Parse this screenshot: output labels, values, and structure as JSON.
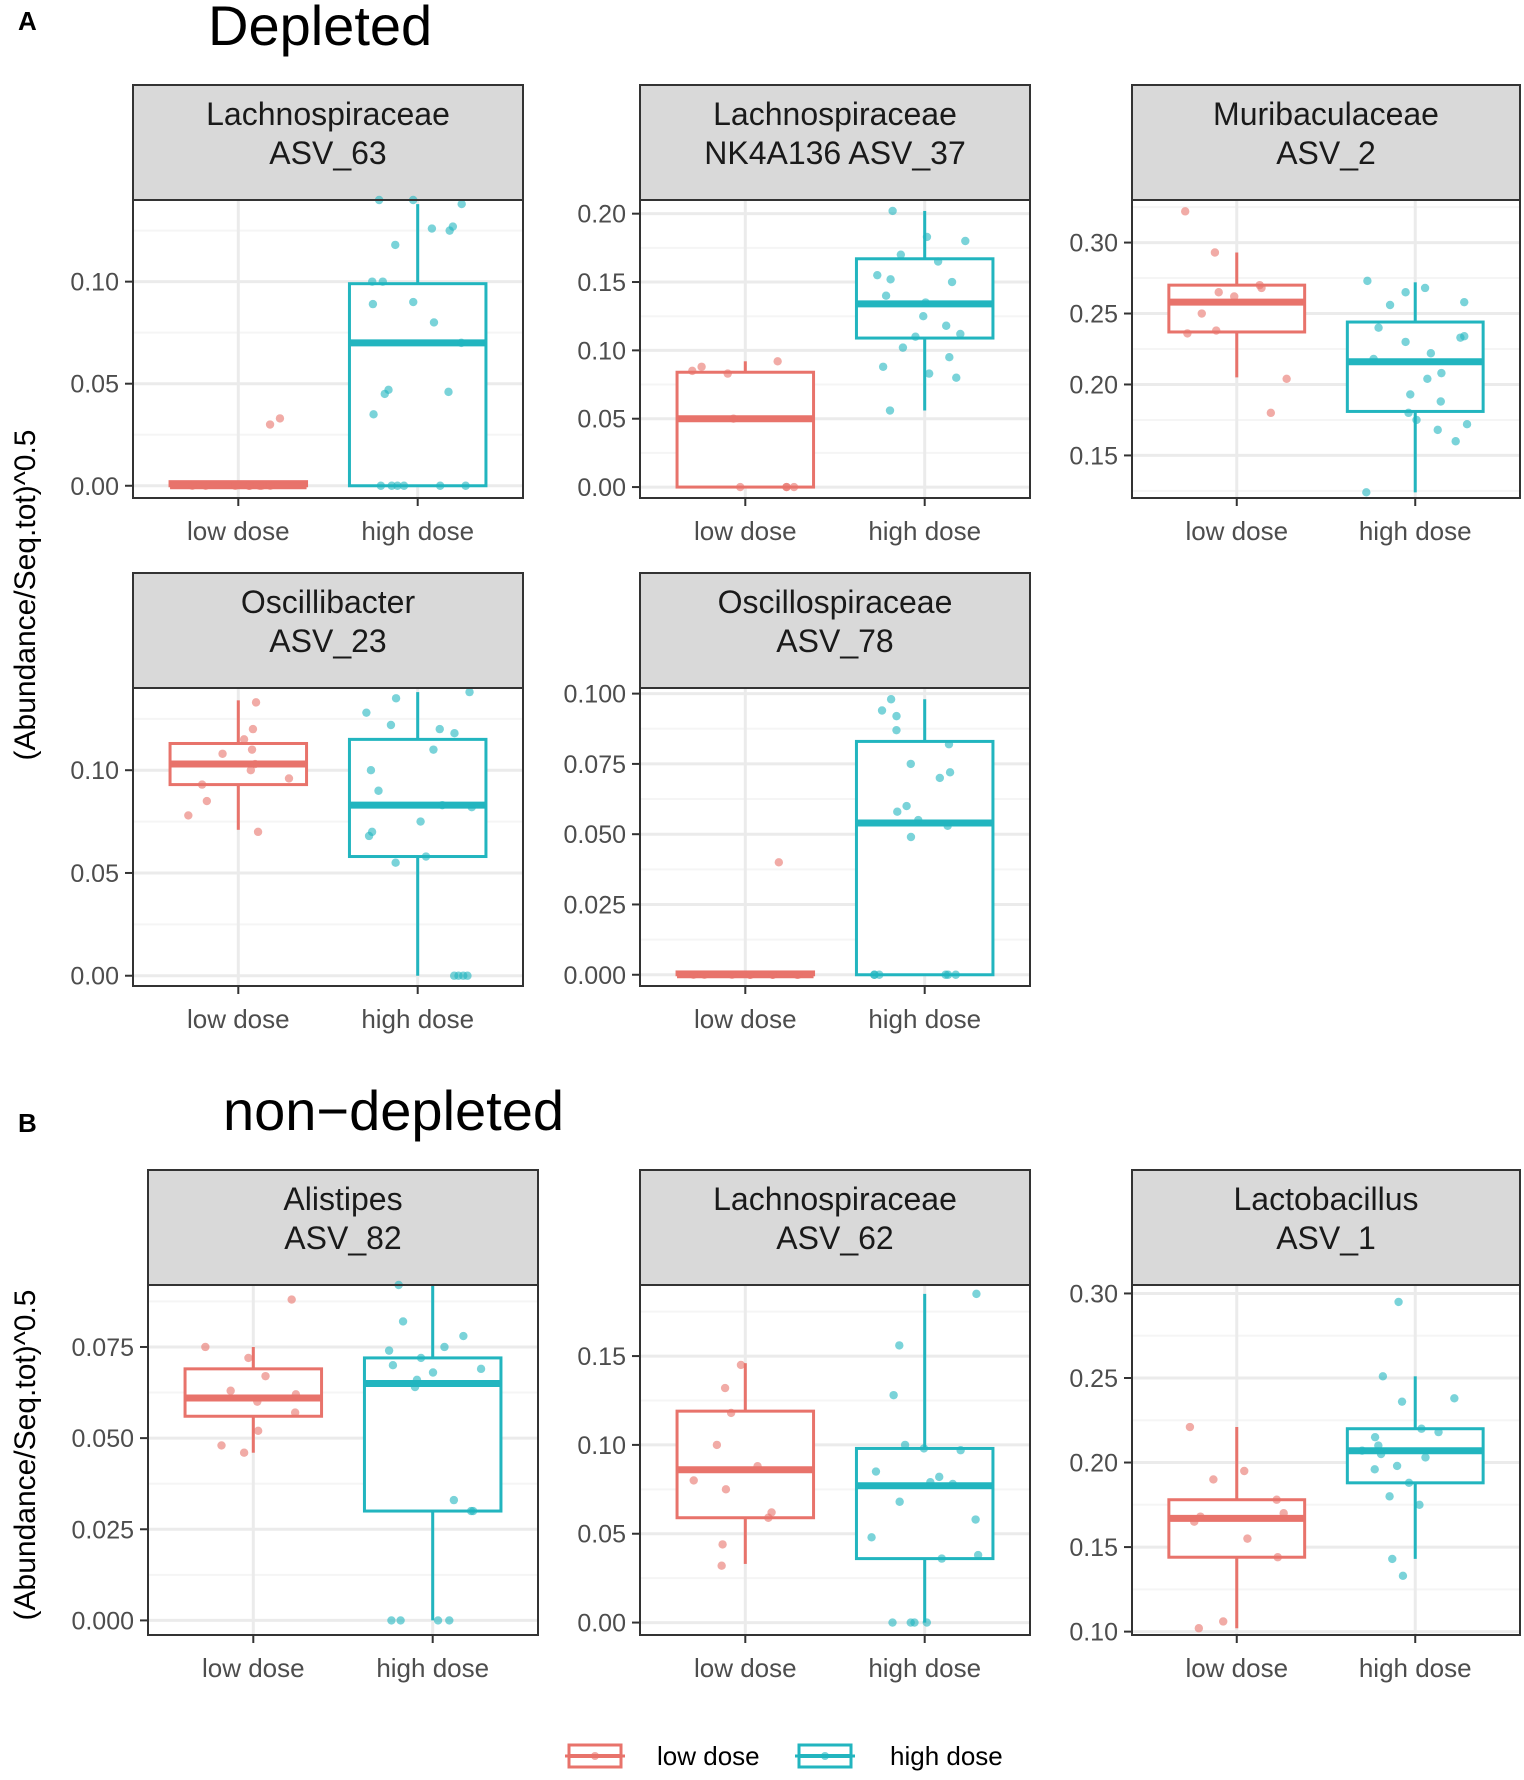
{
  "colors": {
    "low_dose": "#E8736B",
    "high_dose": "#22B5BF",
    "strip_bg": "#D9D9D9",
    "grid_major": "#EBEBEB",
    "grid_minor": "#F5F5F5"
  },
  "sections": [
    {
      "letter": "A",
      "title": "Depleted",
      "ylabel": "(Abundance/Seq.tot)^0.5"
    },
    {
      "letter": "B",
      "title": "non−depleted",
      "ylabel": "(Abundance/Seq.tot)^0.5"
    }
  ],
  "legend": {
    "items": [
      "low dose",
      "high dose"
    ]
  },
  "chart_data": [
    {
      "type": "boxplot",
      "title_lines": [
        "Lachnospiraceae",
        "ASV_63"
      ],
      "categories": [
        "low dose",
        "high dose"
      ],
      "ylim": [
        -0.006,
        0.14
      ],
      "yticks": [
        {
          "v": 0,
          "label": "0.00"
        },
        {
          "v": 0.05,
          "label": "0.05"
        },
        {
          "v": 0.1,
          "label": "0.10"
        }
      ],
      "groups": [
        {
          "name": "low dose",
          "q1": 0,
          "median": 0,
          "q3": 0.002,
          "wlow": 0,
          "whigh": 0.002,
          "points": [
            0,
            0,
            0,
            0,
            0,
            0,
            0,
            0,
            0.033,
            0.03
          ]
        },
        {
          "name": "high dose",
          "q1": 0,
          "median": 0.07,
          "q3": 0.099,
          "wlow": 0,
          "whigh": 0.138,
          "points": [
            0,
            0,
            0,
            0,
            0,
            0,
            0.035,
            0.045,
            0.046,
            0.047,
            0.07,
            0.08,
            0.089,
            0.09,
            0.1,
            0.1,
            0.118,
            0.125,
            0.126,
            0.127,
            0.138,
            0.14,
            0.14
          ]
        }
      ]
    },
    {
      "type": "boxplot",
      "title_lines": [
        "Lachnospiraceae",
        "NK4A136 ASV_37"
      ],
      "categories": [
        "low dose",
        "high dose"
      ],
      "ylim": [
        -0.008,
        0.21
      ],
      "yticks": [
        {
          "v": 0,
          "label": "0.00"
        },
        {
          "v": 0.05,
          "label": "0.05"
        },
        {
          "v": 0.1,
          "label": "0.10"
        },
        {
          "v": 0.15,
          "label": "0.15"
        },
        {
          "v": 0.2,
          "label": "0.20"
        }
      ],
      "groups": [
        {
          "name": "low dose",
          "q1": 0,
          "median": 0.05,
          "q3": 0.084,
          "wlow": 0,
          "whigh": 0.092,
          "points": [
            0,
            0,
            0,
            0,
            0.05,
            0.083,
            0.085,
            0.088,
            0.092
          ]
        },
        {
          "name": "high dose",
          "q1": 0.109,
          "median": 0.134,
          "q3": 0.167,
          "wlow": 0.056,
          "whigh": 0.202,
          "points": [
            0.056,
            0.08,
            0.083,
            0.088,
            0.095,
            0.102,
            0.11,
            0.112,
            0.118,
            0.125,
            0.135,
            0.14,
            0.15,
            0.152,
            0.155,
            0.165,
            0.17,
            0.18,
            0.183,
            0.202
          ]
        }
      ]
    },
    {
      "type": "boxplot",
      "title_lines": [
        "Muribaculaceae",
        "ASV_2"
      ],
      "categories": [
        "low dose",
        "high dose"
      ],
      "ylim": [
        0.12,
        0.33
      ],
      "yticks": [
        {
          "v": 0.15,
          "label": "0.15"
        },
        {
          "v": 0.2,
          "label": "0.20"
        },
        {
          "v": 0.25,
          "label": "0.25"
        },
        {
          "v": 0.3,
          "label": "0.30"
        }
      ],
      "groups": [
        {
          "name": "low dose",
          "q1": 0.237,
          "median": 0.258,
          "q3": 0.27,
          "wlow": 0.205,
          "whigh": 0.293,
          "points": [
            0.18,
            0.204,
            0.236,
            0.238,
            0.25,
            0.262,
            0.265,
            0.268,
            0.27,
            0.293,
            0.322
          ]
        },
        {
          "name": "high dose",
          "q1": 0.181,
          "median": 0.216,
          "q3": 0.244,
          "wlow": 0.124,
          "whigh": 0.272,
          "points": [
            0.124,
            0.16,
            0.168,
            0.172,
            0.175,
            0.18,
            0.188,
            0.193,
            0.204,
            0.208,
            0.218,
            0.222,
            0.23,
            0.233,
            0.234,
            0.24,
            0.256,
            0.258,
            0.265,
            0.268,
            0.273
          ]
        }
      ]
    },
    {
      "type": "boxplot",
      "title_lines": [
        "Oscillibacter",
        "ASV_23"
      ],
      "categories": [
        "low dose",
        "high dose"
      ],
      "ylim": [
        -0.005,
        0.14
      ],
      "yticks": [
        {
          "v": 0,
          "label": "0.00"
        },
        {
          "v": 0.05,
          "label": "0.05"
        },
        {
          "v": 0.1,
          "label": "0.10"
        }
      ],
      "groups": [
        {
          "name": "low dose",
          "q1": 0.093,
          "median": 0.103,
          "q3": 0.113,
          "wlow": 0.071,
          "whigh": 0.134,
          "points": [
            0.07,
            0.078,
            0.085,
            0.093,
            0.096,
            0.1,
            0.103,
            0.108,
            0.11,
            0.115,
            0.12,
            0.133
          ]
        },
        {
          "name": "high dose",
          "q1": 0.058,
          "median": 0.083,
          "q3": 0.115,
          "wlow": 0,
          "whigh": 0.138,
          "points": [
            0,
            0,
            0,
            0,
            0.055,
            0.058,
            0.068,
            0.07,
            0.075,
            0.082,
            0.083,
            0.09,
            0.1,
            0.11,
            0.118,
            0.12,
            0.122,
            0.128,
            0.135,
            0.138
          ]
        }
      ]
    },
    {
      "type": "boxplot",
      "title_lines": [
        "Oscillospiraceae",
        "ASV_78"
      ],
      "categories": [
        "low dose",
        "high dose"
      ],
      "ylim": [
        -0.004,
        0.102
      ],
      "yticks": [
        {
          "v": 0,
          "label": "0.000"
        },
        {
          "v": 0.025,
          "label": "0.025"
        },
        {
          "v": 0.05,
          "label": "0.050"
        },
        {
          "v": 0.075,
          "label": "0.075"
        },
        {
          "v": 0.1,
          "label": "0.100"
        }
      ],
      "groups": [
        {
          "name": "low dose",
          "q1": 0,
          "median": 0,
          "q3": 0.001,
          "wlow": 0,
          "whigh": 0.001,
          "points": [
            0,
            0,
            0,
            0,
            0,
            0,
            0,
            0,
            0,
            0.04
          ]
        },
        {
          "name": "high dose",
          "q1": 0,
          "median": 0.054,
          "q3": 0.083,
          "wlow": 0,
          "whigh": 0.098,
          "points": [
            0,
            0,
            0,
            0,
            0,
            0,
            0.049,
            0.053,
            0.055,
            0.058,
            0.06,
            0.07,
            0.072,
            0.075,
            0.082,
            0.087,
            0.092,
            0.094,
            0.098
          ]
        }
      ]
    },
    {
      "type": "boxplot",
      "title_lines": [
        "Alistipes",
        "ASV_82"
      ],
      "categories": [
        "low dose",
        "high dose"
      ],
      "ylim": [
        -0.004,
        0.092
      ],
      "yticks": [
        {
          "v": 0,
          "label": "0.000"
        },
        {
          "v": 0.025,
          "label": "0.025"
        },
        {
          "v": 0.05,
          "label": "0.050"
        },
        {
          "v": 0.075,
          "label": "0.075"
        }
      ],
      "groups": [
        {
          "name": "low dose",
          "q1": 0.056,
          "median": 0.061,
          "q3": 0.069,
          "wlow": 0.046,
          "whigh": 0.075,
          "points": [
            0.046,
            0.048,
            0.052,
            0.057,
            0.06,
            0.062,
            0.063,
            0.067,
            0.072,
            0.075,
            0.088
          ]
        },
        {
          "name": "high dose",
          "q1": 0.03,
          "median": 0.065,
          "q3": 0.072,
          "wlow": 0,
          "whigh": 0.092,
          "points": [
            0,
            0,
            0,
            0,
            0.03,
            0.03,
            0.033,
            0.064,
            0.066,
            0.068,
            0.069,
            0.07,
            0.072,
            0.074,
            0.075,
            0.078,
            0.082,
            0.092
          ]
        }
      ]
    },
    {
      "type": "boxplot",
      "title_lines": [
        "Lachnospiraceae",
        "ASV_62"
      ],
      "categories": [
        "low dose",
        "high dose"
      ],
      "ylim": [
        -0.007,
        0.19
      ],
      "yticks": [
        {
          "v": 0,
          "label": "0.00"
        },
        {
          "v": 0.05,
          "label": "0.05"
        },
        {
          "v": 0.1,
          "label": "0.10"
        },
        {
          "v": 0.15,
          "label": "0.15"
        }
      ],
      "groups": [
        {
          "name": "low dose",
          "q1": 0.059,
          "median": 0.086,
          "q3": 0.119,
          "wlow": 0.033,
          "whigh": 0.146,
          "points": [
            0.032,
            0.044,
            0.059,
            0.062,
            0.075,
            0.08,
            0.088,
            0.1,
            0.118,
            0.132,
            0.145
          ]
        },
        {
          "name": "high dose",
          "q1": 0.036,
          "median": 0.077,
          "q3": 0.098,
          "wlow": 0,
          "whigh": 0.185,
          "points": [
            0,
            0,
            0,
            0,
            0.036,
            0.038,
            0.048,
            0.058,
            0.068,
            0.078,
            0.079,
            0.082,
            0.085,
            0.097,
            0.098,
            0.1,
            0.128,
            0.156,
            0.185
          ]
        }
      ]
    },
    {
      "type": "boxplot",
      "title_lines": [
        "Lactobacillus",
        "ASV_1"
      ],
      "categories": [
        "low dose",
        "high dose"
      ],
      "ylim": [
        0.098,
        0.305
      ],
      "yticks": [
        {
          "v": 0.1,
          "label": "0.10"
        },
        {
          "v": 0.15,
          "label": "0.15"
        },
        {
          "v": 0.2,
          "label": "0.20"
        },
        {
          "v": 0.25,
          "label": "0.25"
        },
        {
          "v": 0.3,
          "label": "0.30"
        }
      ],
      "groups": [
        {
          "name": "low dose",
          "q1": 0.144,
          "median": 0.167,
          "q3": 0.178,
          "wlow": 0.102,
          "whigh": 0.221,
          "points": [
            0.102,
            0.106,
            0.144,
            0.155,
            0.165,
            0.168,
            0.17,
            0.178,
            0.19,
            0.195,
            0.221
          ]
        },
        {
          "name": "high dose",
          "q1": 0.188,
          "median": 0.207,
          "q3": 0.22,
          "wlow": 0.143,
          "whigh": 0.251,
          "points": [
            0.133,
            0.143,
            0.175,
            0.18,
            0.188,
            0.196,
            0.198,
            0.203,
            0.205,
            0.207,
            0.21,
            0.215,
            0.218,
            0.22,
            0.236,
            0.238,
            0.251,
            0.295
          ]
        }
      ]
    }
  ]
}
